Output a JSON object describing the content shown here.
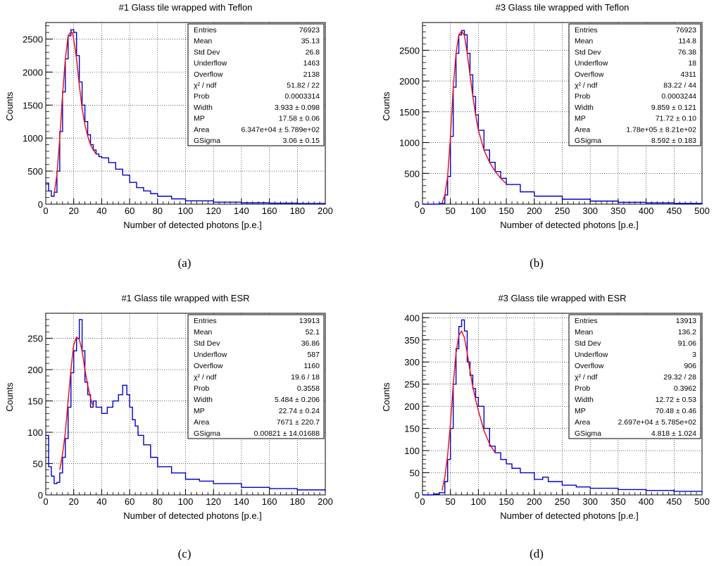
{
  "captions": [
    "(a)",
    "(b)",
    "(c)",
    "(d)"
  ],
  "colors": {
    "histogram": "#0000cc",
    "fit": "#e8141e",
    "grid": "#000000",
    "background": "#ffffff"
  },
  "chart_data": [
    {
      "type": "histogram",
      "title": "#1 Glass tile wrapped with Teflon",
      "xlabel": "Number of detected photons [p.e.]",
      "ylabel": "Counts",
      "xlim": [
        0,
        200
      ],
      "ylim": [
        0,
        2750
      ],
      "xticks": [
        0,
        20,
        40,
        60,
        80,
        100,
        120,
        140,
        160,
        180,
        200
      ],
      "yticks": [
        0,
        500,
        1000,
        1500,
        2000,
        2500
      ],
      "grid": true,
      "legend_position": "top-right",
      "histogram": {
        "x": [
          0,
          2,
          4,
          6,
          8,
          10,
          12,
          14,
          16,
          18,
          20,
          22,
          24,
          26,
          28,
          30,
          32,
          34,
          36,
          38,
          40,
          45,
          50,
          55,
          60,
          65,
          70,
          75,
          80,
          90,
          100,
          120,
          140,
          160,
          180,
          200
        ],
        "y": [
          320,
          200,
          120,
          180,
          500,
          1100,
          1700,
          2200,
          2550,
          2640,
          2600,
          2250,
          1850,
          1500,
          1250,
          1050,
          900,
          820,
          760,
          720,
          700,
          630,
          530,
          440,
          330,
          250,
          200,
          160,
          120,
          80,
          50,
          30,
          20,
          15,
          10,
          5
        ]
      },
      "fit": {
        "x": [
          6,
          8,
          10,
          12,
          14,
          16,
          18,
          19,
          20,
          22,
          24,
          26,
          28,
          30,
          32,
          34,
          36
        ],
        "y": [
          150,
          450,
          1000,
          1650,
          2200,
          2550,
          2610,
          2600,
          2500,
          2200,
          1800,
          1450,
          1200,
          1030,
          900,
          820,
          760
        ]
      },
      "stats": [
        {
          "label": "Entries",
          "value": "76923"
        },
        {
          "label": "Mean",
          "value": "35.13"
        },
        {
          "label": "Std Dev",
          "value": "26.8"
        },
        {
          "label": "Underflow",
          "value": "1463"
        },
        {
          "label": "Overflow",
          "value": "2138"
        },
        {
          "label": "χ² / ndf",
          "value": "51.82 / 22"
        },
        {
          "label": "Prob",
          "value": "0.0003314"
        },
        {
          "label": "Width",
          "value": "3.933 ± 0.098"
        },
        {
          "label": "MP",
          "value": "17.58 ± 0.06"
        },
        {
          "label": "Area",
          "value": "6.347e+04 ± 5.789e+02"
        },
        {
          "label": "GSigma",
          "value": "3.06 ± 0.15"
        }
      ]
    },
    {
      "type": "histogram",
      "title": "#3 Glass tile wrapped with Teflon",
      "xlabel": "Number of detected photons [p.e.]",
      "ylabel": "Counts",
      "xlim": [
        0,
        500
      ],
      "ylim": [
        0,
        2950
      ],
      "xticks": [
        0,
        50,
        100,
        150,
        200,
        250,
        300,
        350,
        400,
        450,
        500
      ],
      "yticks": [
        0,
        500,
        1000,
        1500,
        2000,
        2500
      ],
      "grid": true,
      "legend_position": "top-right",
      "histogram": {
        "x": [
          0,
          20,
          30,
          40,
          45,
          50,
          55,
          60,
          65,
          70,
          75,
          80,
          85,
          90,
          95,
          100,
          110,
          120,
          130,
          140,
          150,
          175,
          200,
          250,
          300,
          350,
          400,
          450,
          500
        ],
        "y": [
          0,
          0,
          10,
          150,
          450,
          1100,
          1900,
          2450,
          2750,
          2820,
          2750,
          2450,
          2100,
          1750,
          1450,
          1200,
          880,
          680,
          530,
          420,
          320,
          200,
          130,
          80,
          50,
          30,
          20,
          12,
          8
        ]
      },
      "fit": {
        "x": [
          35,
          40,
          45,
          50,
          55,
          60,
          65,
          70,
          75,
          80,
          85,
          90,
          95,
          100,
          110,
          120,
          130,
          140,
          150
        ],
        "y": [
          20,
          150,
          450,
          1100,
          1900,
          2450,
          2750,
          2810,
          2740,
          2450,
          2100,
          1750,
          1450,
          1200,
          880,
          680,
          530,
          420,
          330
        ]
      },
      "stats": [
        {
          "label": "Entries",
          "value": "76923"
        },
        {
          "label": "Mean",
          "value": "114.8"
        },
        {
          "label": "Std Dev",
          "value": "76.38"
        },
        {
          "label": "Underflow",
          "value": "18"
        },
        {
          "label": "Overflow",
          "value": "4311"
        },
        {
          "label": "χ² / ndf",
          "value": "83.22 / 44"
        },
        {
          "label": "Prob",
          "value": "0.0003244"
        },
        {
          "label": "Width",
          "value": "9.859 ± 0.121"
        },
        {
          "label": "MP",
          "value": "71.72 ± 0.10"
        },
        {
          "label": "Area",
          "value": "1.78e+05 ± 8.21e+02"
        },
        {
          "label": "GSigma",
          "value": "8.592 ± 0.183"
        }
      ]
    },
    {
      "type": "histogram",
      "title": "#1 Glass tile wrapped with ESR",
      "xlabel": "Number of detected photons [p.e.]",
      "ylabel": "Counts",
      "xlim": [
        0,
        200
      ],
      "ylim": [
        0,
        290
      ],
      "xticks": [
        0,
        20,
        40,
        60,
        80,
        100,
        120,
        140,
        160,
        180,
        200
      ],
      "yticks": [
        0,
        50,
        100,
        150,
        200,
        250
      ],
      "grid": true,
      "legend_position": "top-right",
      "histogram": {
        "x": [
          0,
          2,
          4,
          6,
          8,
          10,
          12,
          14,
          16,
          18,
          20,
          22,
          24,
          26,
          28,
          30,
          32,
          34,
          36,
          40,
          44,
          48,
          52,
          55,
          58,
          60,
          62,
          64,
          66,
          70,
          75,
          80,
          90,
          100,
          110,
          120,
          140,
          160,
          180,
          200
        ],
        "y": [
          95,
          45,
          30,
          18,
          20,
          35,
          60,
          90,
          140,
          195,
          230,
          250,
          280,
          230,
          180,
          160,
          140,
          150,
          140,
          130,
          140,
          150,
          160,
          175,
          160,
          140,
          120,
          110,
          95,
          80,
          60,
          45,
          35,
          25,
          22,
          18,
          12,
          10,
          8,
          6
        ]
      },
      "fit": {
        "x": [
          10,
          12,
          14,
          16,
          18,
          20,
          22,
          24,
          26,
          28,
          30,
          32,
          34
        ],
        "y": [
          40,
          65,
          100,
          150,
          200,
          240,
          252,
          248,
          230,
          200,
          175,
          155,
          140
        ]
      },
      "stats": [
        {
          "label": "Entries",
          "value": "13913"
        },
        {
          "label": "Mean",
          "value": "52.1"
        },
        {
          "label": "Std Dev",
          "value": "36.86"
        },
        {
          "label": "Underflow",
          "value": "587"
        },
        {
          "label": "Overflow",
          "value": "1160"
        },
        {
          "label": "χ² / ndf",
          "value": "19.6 / 18"
        },
        {
          "label": "Prob",
          "value": "0.3558"
        },
        {
          "label": "Width",
          "value": "5.484 ± 0.206"
        },
        {
          "label": "MP",
          "value": "22.74 ± 0.24"
        },
        {
          "label": "Area",
          "value": "7671 ± 220.7"
        },
        {
          "label": "GSigma",
          "value": "0.00821 ± 14.01688"
        }
      ]
    },
    {
      "type": "histogram",
      "title": "#3 Glass tile wrapped with ESR",
      "xlabel": "Number of detected photons [p.e.]",
      "ylabel": "Counts",
      "xlim": [
        0,
        500
      ],
      "ylim": [
        0,
        410
      ],
      "xticks": [
        0,
        50,
        100,
        150,
        200,
        250,
        300,
        350,
        400,
        450,
        500
      ],
      "yticks": [
        0,
        50,
        100,
        150,
        200,
        250,
        300,
        350,
        400
      ],
      "grid": true,
      "legend_position": "top-right",
      "histogram": {
        "x": [
          0,
          20,
          30,
          40,
          45,
          50,
          55,
          60,
          65,
          70,
          75,
          80,
          85,
          90,
          95,
          100,
          110,
          120,
          130,
          140,
          150,
          160,
          175,
          200,
          215,
          225,
          250,
          275,
          300,
          350,
          400,
          450,
          500
        ],
        "y": [
          0,
          2,
          5,
          30,
          80,
          150,
          250,
          330,
          380,
          395,
          370,
          300,
          270,
          240,
          220,
          200,
          150,
          110,
          95,
          80,
          70,
          60,
          50,
          35,
          40,
          30,
          22,
          18,
          15,
          12,
          10,
          8,
          6
        ]
      },
      "fit": {
        "x": [
          35,
          40,
          45,
          50,
          55,
          60,
          65,
          70,
          75,
          80,
          85,
          90,
          95,
          100,
          110,
          120,
          130
        ],
        "y": [
          10,
          40,
          90,
          160,
          250,
          320,
          360,
          370,
          355,
          320,
          280,
          245,
          215,
          190,
          145,
          115,
          95
        ]
      },
      "stats": [
        {
          "label": "Entries",
          "value": "13913"
        },
        {
          "label": "Mean",
          "value": "136.2"
        },
        {
          "label": "Std Dev",
          "value": "91.06"
        },
        {
          "label": "Underflow",
          "value": "3"
        },
        {
          "label": "Overflow",
          "value": "906"
        },
        {
          "label": "χ² / ndf",
          "value": "29.32 / 28"
        },
        {
          "label": "Prob",
          "value": "0.3962"
        },
        {
          "label": "Width",
          "value": "12.72 ± 0.53"
        },
        {
          "label": "MP",
          "value": "70.48 ± 0.46"
        },
        {
          "label": "Area",
          "value": "2.697e+04 ± 5.785e+02"
        },
        {
          "label": "GSigma",
          "value": "4.818 ± 1.024"
        }
      ]
    }
  ]
}
